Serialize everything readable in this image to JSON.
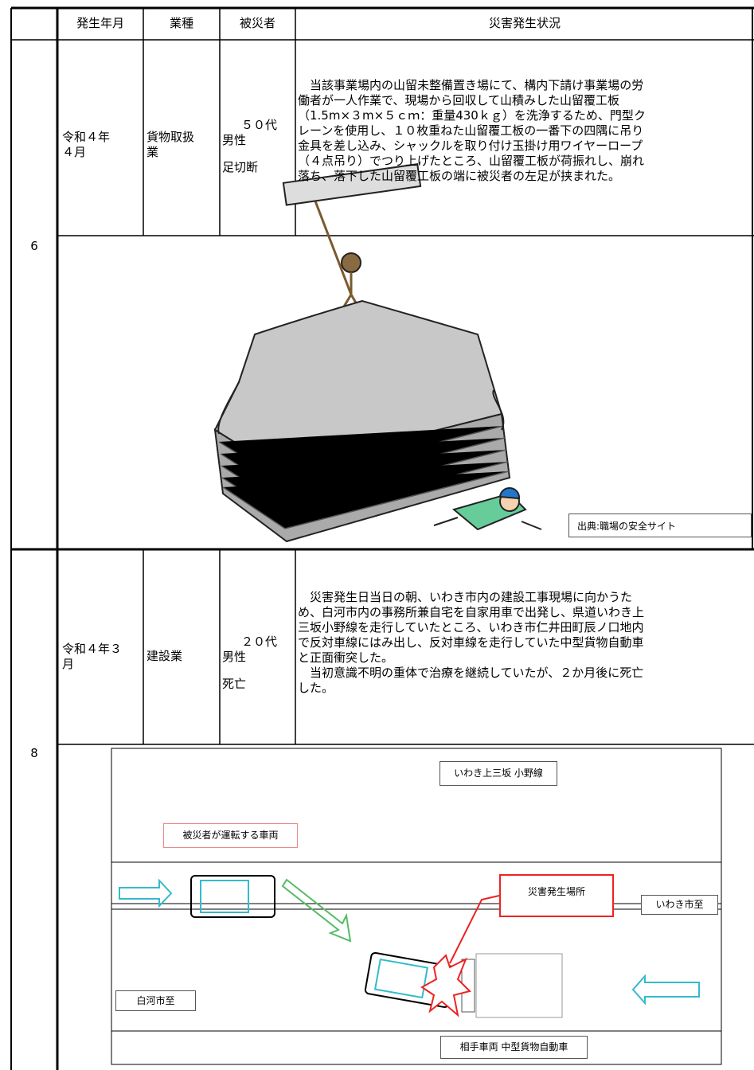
{
  "header": {
    "number": "",
    "date": "発生年月",
    "industry": "業種",
    "victim": "被災者",
    "situation": "災害発生状況"
  },
  "cases": [
    {
      "number": "6",
      "date": [
        "令和４年",
        "４月"
      ],
      "industry": [
        "貨物取扱",
        "業"
      ],
      "victim": [
        "５０代",
        "男性"
      ],
      "injury": "足切断",
      "description": [
        "　当該事業場内の山留未整備置き場にて、構内下請け事業場の労",
        "働者が一人作業で、現場から回収して山積みした山留覆工板",
        "（1.5m×３m×５ｃｍ：重量430ｋｇ）を洗浄するため、門型ク",
        "レーンを使用し、１０枚重ねた山留覆工板の一番下の四隅に吊り",
        "金具を差し込み、シャックルを取り付け玉掛け用ワイヤーロープ",
        "（４点吊り）でつり上げたところ、山留覆工板が荷振れし、崩れ",
        "落ち、落下した山留覆工板の端に被災者の左足が挟まれた。"
      ],
      "image_caption": "出典:職場の安全サイト"
    },
    {
      "number": "8",
      "date": [
        "令和４年３",
        "月"
      ],
      "industry": [
        "建設業"
      ],
      "victim": [
        "２０代",
        "男性"
      ],
      "injury": "死亡",
      "description": [
        "　災害発生日当日の朝、いわき市内の建設工事現場に向かうた",
        "め、白河市内の事務所兼自宅を自家用車で出発し、県道いわき上",
        "三坂小野線を走行していたところ、いわき市仁井田町辰ノ口地内",
        "で反対車線にはみ出し、反対車線を走行していた中型貨物自動車",
        "と正面衝突した。",
        "　当初意識不明の重体で治療を継続していたが、２か月後に死亡",
        "した。"
      ],
      "diagram": {
        "road": "いわき上三坂 小野線",
        "victim_vehicle": "被災者が運転する車両",
        "accident_site": "災害発生場所",
        "east": "いわき市至",
        "west": "白河市至",
        "other_vehicle": "相手車両 中型貨物自動車"
      }
    }
  ]
}
